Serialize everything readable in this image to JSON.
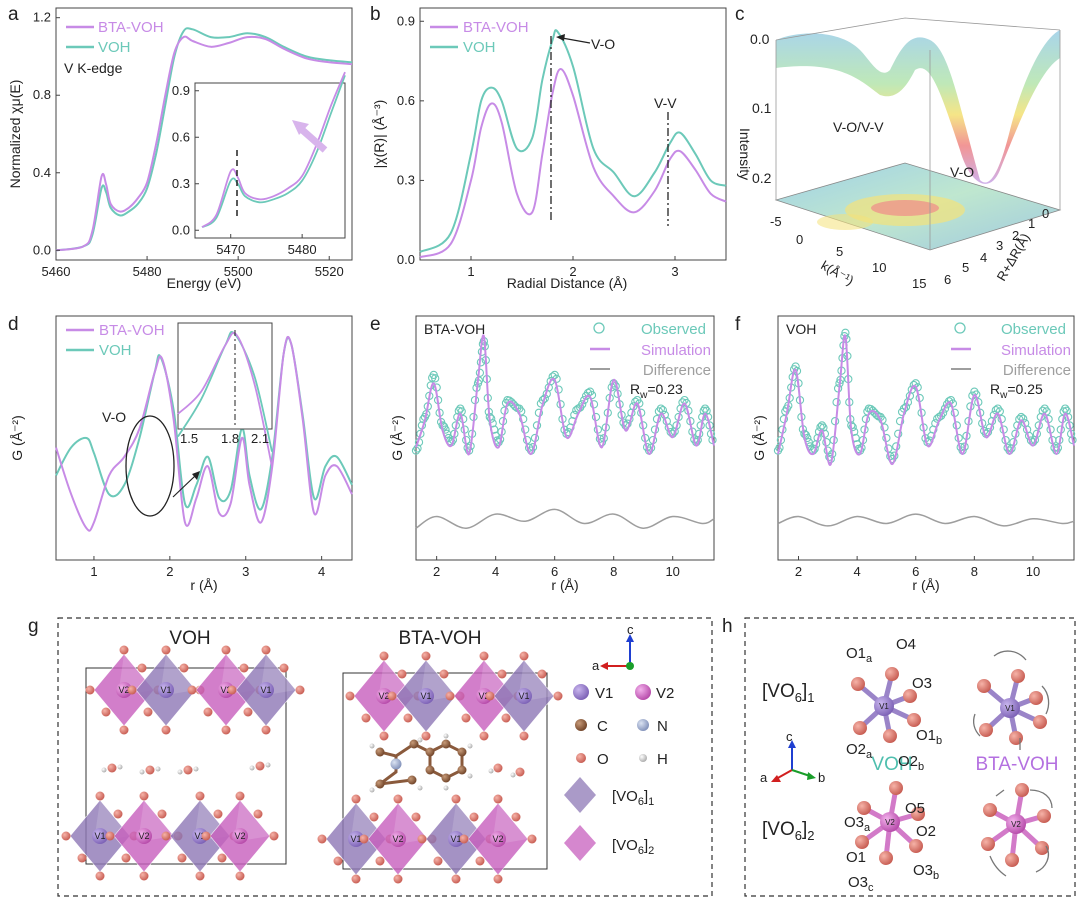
{
  "colors": {
    "bta": "#c78be6",
    "voh": "#6cc9b9",
    "diff": "#9e9e9e",
    "vo6_1": "#8e78b6",
    "vo6_2": "#c75fbd",
    "oxygen": "#d9756a",
    "carbon": "#8a5a3c",
    "nitrogen": "#9eaecf"
  },
  "panel_letters": {
    "a": "a",
    "b": "b",
    "c": "c",
    "d": "d",
    "e": "e",
    "f": "f",
    "g": "g",
    "h": "h"
  },
  "panel_a": {
    "legend": [
      "BTA-VOH",
      "VOH"
    ],
    "note": "V K-edge",
    "xlabel": "Energy (eV)",
    "ylabel": "Normalized χμ(E)",
    "xticks": [
      "5460",
      "5480",
      "5500",
      "5520"
    ],
    "yticks": [
      "0.0",
      "0.4",
      "0.8",
      "1.2"
    ],
    "inset_xticks": [
      "5470",
      "5480"
    ],
    "inset_yticks": [
      "0.0",
      "0.3",
      "0.6",
      "0.9"
    ]
  },
  "panel_b": {
    "legend": [
      "BTA-VOH",
      "VOH"
    ],
    "xlabel": "Radial Distance (Å)",
    "ylabel": "|χ(R)| (Å⁻³)",
    "xticks": [
      "1",
      "2",
      "3"
    ],
    "yticks": [
      "0.0",
      "0.3",
      "0.6",
      "0.9"
    ],
    "ann_vo": "V-O",
    "ann_vv": "V-V"
  },
  "panel_c": {
    "zlabel": "Intensity",
    "zticks": [
      "0.0",
      "0.1",
      "0.2"
    ],
    "k_label": "k(Å⁻¹)",
    "r_label": "R+ΔR(Å)",
    "k_ticks": [
      "-5",
      "0",
      "5",
      "10",
      "15"
    ],
    "r_ticks": [
      "0",
      "1",
      "2",
      "3",
      "4",
      "5",
      "6"
    ],
    "ann1": "V-O/V-V",
    "ann2": "V-O"
  },
  "panel_d": {
    "legend": [
      "BTA-VOH",
      "VOH"
    ],
    "xlabel": "r (Å)",
    "ylabel": "G (Å⁻²)",
    "xticks": [
      "1",
      "2",
      "3",
      "4"
    ],
    "ann": "V-O",
    "inset_xticks": [
      "1.5",
      "1.8",
      "2.1"
    ]
  },
  "panel_e": {
    "title": "BTA-VOH",
    "legend": [
      "Observed",
      "Simulation",
      "Difference"
    ],
    "rw": "R",
    "rw_sub": "w",
    "rw_val": "=0.23",
    "xlabel": "r (Å)",
    "ylabel": "G (Å⁻²)",
    "xticks": [
      "2",
      "4",
      "6",
      "8",
      "10"
    ]
  },
  "panel_f": {
    "title": "VOH",
    "legend": [
      "Observed",
      "Simulation",
      "Difference"
    ],
    "rw": "R",
    "rw_sub": "w",
    "rw_val": "=0.25",
    "xlabel": "r (Å)",
    "ylabel": "G (Å⁻²)",
    "xticks": [
      "2",
      "4",
      "6",
      "8",
      "10"
    ]
  },
  "panel_g": {
    "title_left": "VOH",
    "title_right": "BTA-VOH",
    "axis_c": "c",
    "axis_a": "a",
    "legend_v1": "V1",
    "legend_v2": "V2",
    "legend_c": "C",
    "legend_n": "N",
    "legend_o": "O",
    "legend_h": "H",
    "vo6_1": "[VO",
    "vo6_1_sub": "6",
    "vo6_1_end": "]",
    "vo6_1_idx": "1",
    "vo6_2_idx": "2",
    "site_v1": "V1",
    "site_v2": "V2"
  },
  "panel_h": {
    "row1": "[VO",
    "sub6": "6",
    "idx1": "1",
    "idx2": "2",
    "voh": "VOH",
    "bta_voh": "BTA-VOH",
    "axes": [
      "c",
      "a",
      "b"
    ],
    "labels1": [
      "O1",
      "a",
      "O4",
      "O3",
      "O2",
      "a",
      "O2",
      "b",
      "O1",
      "b"
    ],
    "labels2": [
      "O3",
      "a",
      "O5",
      "O2",
      "O1",
      "O3",
      "c",
      "O3",
      "b"
    ],
    "site_v1": "V1",
    "site_v2": "V2"
  },
  "chart_data": [
    {
      "panel": "a",
      "type": "line",
      "xlabel": "Energy (eV)",
      "ylabel": "Normalized χμ(E)",
      "xlim": [
        5460,
        5525
      ],
      "ylim": [
        -0.05,
        1.25
      ],
      "series": [
        {
          "name": "BTA-VOH",
          "x": [
            5460,
            5466,
            5468,
            5470,
            5471,
            5472,
            5474,
            5476,
            5478,
            5480,
            5482,
            5484,
            5486,
            5488,
            5490,
            5494,
            5498,
            5502,
            5506,
            5510,
            5515,
            5520,
            5525
          ],
          "y": [
            0.0,
            0.02,
            0.1,
            0.38,
            0.34,
            0.24,
            0.2,
            0.22,
            0.27,
            0.35,
            0.55,
            0.8,
            1.02,
            1.1,
            1.08,
            1.05,
            1.07,
            1.1,
            1.09,
            1.04,
            0.99,
            0.97,
            0.96
          ]
        },
        {
          "name": "VOH",
          "x": [
            5460,
            5466,
            5468,
            5470,
            5471,
            5472,
            5474,
            5476,
            5478,
            5480,
            5482,
            5484,
            5486,
            5488,
            5490,
            5494,
            5498,
            5502,
            5506,
            5510,
            5515,
            5520,
            5525
          ],
          "y": [
            0.0,
            0.02,
            0.08,
            0.32,
            0.3,
            0.22,
            0.18,
            0.2,
            0.24,
            0.32,
            0.5,
            0.75,
            1.0,
            1.13,
            1.14,
            1.1,
            1.1,
            1.12,
            1.1,
            1.05,
            1.0,
            0.98,
            0.97
          ]
        }
      ]
    },
    {
      "panel": "b",
      "type": "line",
      "xlabel": "Radial Distance (Å)",
      "ylabel": "|χ(R)| (Å⁻³)",
      "xlim": [
        0.5,
        3.5
      ],
      "ylim": [
        0,
        0.95
      ],
      "series": [
        {
          "name": "BTA-VOH",
          "x": [
            0.5,
            0.8,
            1.0,
            1.1,
            1.2,
            1.3,
            1.45,
            1.6,
            1.7,
            1.8,
            1.88,
            2.0,
            2.2,
            2.4,
            2.6,
            2.8,
            2.95,
            3.05,
            3.2,
            3.35,
            3.5
          ],
          "y": [
            0.01,
            0.06,
            0.3,
            0.5,
            0.59,
            0.52,
            0.25,
            0.18,
            0.4,
            0.63,
            0.72,
            0.62,
            0.35,
            0.24,
            0.18,
            0.26,
            0.38,
            0.41,
            0.34,
            0.25,
            0.22
          ]
        },
        {
          "name": "VOH",
          "x": [
            0.5,
            0.8,
            1.0,
            1.1,
            1.2,
            1.3,
            1.45,
            1.6,
            1.7,
            1.8,
            1.85,
            2.0,
            2.2,
            2.4,
            2.6,
            2.8,
            2.95,
            3.05,
            3.2,
            3.35,
            3.5
          ],
          "y": [
            0.03,
            0.1,
            0.4,
            0.6,
            0.65,
            0.6,
            0.42,
            0.46,
            0.68,
            0.83,
            0.86,
            0.73,
            0.42,
            0.33,
            0.24,
            0.33,
            0.44,
            0.48,
            0.4,
            0.3,
            0.28
          ]
        }
      ]
    },
    {
      "panel": "d",
      "type": "line",
      "xlabel": "r (Å)",
      "ylabel": "G (Å⁻²)",
      "xlim": [
        0.5,
        4.4
      ],
      "series": [
        {
          "name": "BTA-VOH",
          "x": [
            0.5,
            0.7,
            0.9,
            1.0,
            1.2,
            1.4,
            1.6,
            1.8,
            1.9,
            2.05,
            2.2,
            2.35,
            2.5,
            2.65,
            2.8,
            2.95,
            3.05,
            3.2,
            3.35,
            3.5,
            3.6,
            3.75,
            3.9,
            4.05,
            4.2,
            4.4
          ],
          "y": [
            0.45,
            0.2,
            0.02,
            0.05,
            0.3,
            0.4,
            0.55,
            0.85,
            0.92,
            0.6,
            0.05,
            0.18,
            0.35,
            0.1,
            0.15,
            0.5,
            0.25,
            0.05,
            0.35,
            0.95,
            1.0,
            0.6,
            0.1,
            0.3,
            0.35,
            0.2
          ]
        },
        {
          "name": "VOH",
          "x": [
            0.5,
            0.7,
            0.9,
            1.0,
            1.2,
            1.4,
            1.6,
            1.8,
            1.88,
            2.05,
            2.2,
            2.35,
            2.5,
            2.65,
            2.8,
            2.95,
            3.05,
            3.2,
            3.35,
            3.5,
            3.6,
            3.75,
            3.9,
            4.05,
            4.2,
            4.4
          ],
          "y": [
            0.3,
            0.45,
            0.5,
            0.42,
            0.2,
            0.25,
            0.5,
            0.85,
            0.93,
            0.65,
            0.15,
            0.25,
            0.4,
            0.18,
            0.22,
            0.55,
            0.3,
            0.12,
            0.4,
            0.95,
            1.0,
            0.62,
            0.18,
            0.35,
            0.4,
            0.25
          ]
        }
      ]
    },
    {
      "panel": "e",
      "type": "line",
      "xlabel": "r (Å)",
      "ylabel": "G (Å⁻²)",
      "xlim": [
        1.3,
        11.4
      ],
      "series": [
        {
          "name": "Observed",
          "x": [
            1.3,
            1.6,
            1.9,
            2.2,
            2.5,
            2.8,
            3.1,
            3.4,
            3.6,
            3.8,
            4.1,
            4.4,
            4.8,
            5.2,
            5.6,
            6.0,
            6.4,
            6.8,
            7.2,
            7.6,
            8.0,
            8.4,
            8.8,
            9.2,
            9.6,
            10.0,
            10.4,
            10.8,
            11.1,
            11.4
          ],
          "y": [
            0.3,
            0.5,
            0.75,
            0.45,
            0.35,
            0.55,
            0.3,
            0.7,
            0.95,
            0.5,
            0.35,
            0.6,
            0.55,
            0.3,
            0.6,
            0.75,
            0.4,
            0.55,
            0.65,
            0.35,
            0.7,
            0.45,
            0.6,
            0.3,
            0.55,
            0.4,
            0.6,
            0.35,
            0.55,
            0.35
          ]
        },
        {
          "name": "Simulation",
          "x": [
            1.3,
            1.6,
            1.9,
            2.2,
            2.5,
            2.8,
            3.1,
            3.4,
            3.6,
            3.8,
            4.1,
            4.4,
            4.8,
            5.2,
            5.6,
            6.0,
            6.4,
            6.8,
            7.2,
            7.6,
            8.0,
            8.4,
            8.8,
            9.2,
            9.6,
            10.0,
            10.4,
            10.8,
            11.1,
            11.4
          ],
          "y": [
            0.32,
            0.48,
            0.7,
            0.42,
            0.33,
            0.52,
            0.28,
            0.72,
            0.98,
            0.48,
            0.32,
            0.58,
            0.52,
            0.28,
            0.58,
            0.72,
            0.38,
            0.52,
            0.62,
            0.32,
            0.72,
            0.42,
            0.58,
            0.28,
            0.52,
            0.38,
            0.58,
            0.33,
            0.52,
            0.33
          ]
        },
        {
          "name": "Difference",
          "x": [
            1.3,
            2,
            3,
            4,
            5,
            6,
            7,
            8,
            9,
            10,
            11,
            11.4
          ],
          "y": [
            0.0,
            0.05,
            0.0,
            0.06,
            0.03,
            0.08,
            0.02,
            0.06,
            0.0,
            0.05,
            0.02,
            0.04
          ]
        }
      ]
    },
    {
      "panel": "f",
      "type": "line",
      "xlabel": "r (Å)",
      "ylabel": "G (Å⁻²)",
      "xlim": [
        1.3,
        11.4
      ],
      "series": [
        {
          "name": "Observed",
          "x": [
            1.3,
            1.6,
            1.9,
            2.2,
            2.5,
            2.8,
            3.1,
            3.4,
            3.6,
            3.8,
            4.1,
            4.4,
            4.8,
            5.2,
            5.6,
            6.0,
            6.4,
            6.8,
            7.2,
            7.6,
            8.0,
            8.4,
            8.8,
            9.2,
            9.6,
            10.0,
            10.4,
            10.8,
            11.1,
            11.4
          ],
          "y": [
            0.3,
            0.55,
            0.8,
            0.4,
            0.3,
            0.45,
            0.25,
            0.7,
            1.0,
            0.45,
            0.3,
            0.55,
            0.5,
            0.25,
            0.55,
            0.7,
            0.35,
            0.5,
            0.6,
            0.3,
            0.65,
            0.4,
            0.55,
            0.3,
            0.5,
            0.35,
            0.55,
            0.3,
            0.55,
            0.35
          ]
        },
        {
          "name": "Simulation",
          "x": [
            1.3,
            1.6,
            1.9,
            2.2,
            2.5,
            2.8,
            3.1,
            3.4,
            3.6,
            3.8,
            4.1,
            4.4,
            4.8,
            5.2,
            5.6,
            6.0,
            6.4,
            6.8,
            7.2,
            7.6,
            8.0,
            8.4,
            8.8,
            9.2,
            9.6,
            10.0,
            10.4,
            10.8,
            11.1,
            11.4
          ],
          "y": [
            0.28,
            0.52,
            0.78,
            0.38,
            0.28,
            0.42,
            0.22,
            0.68,
            0.98,
            0.42,
            0.28,
            0.52,
            0.48,
            0.22,
            0.52,
            0.68,
            0.33,
            0.48,
            0.58,
            0.28,
            0.63,
            0.38,
            0.52,
            0.28,
            0.48,
            0.33,
            0.52,
            0.28,
            0.52,
            0.33
          ]
        },
        {
          "name": "Difference",
          "x": [
            1.3,
            2,
            3,
            4,
            5,
            6,
            7,
            8,
            9,
            10,
            11,
            11.4
          ],
          "y": [
            0.02,
            0.05,
            0.01,
            0.05,
            0.02,
            0.06,
            0.02,
            0.05,
            0.01,
            0.04,
            0.02,
            0.03
          ]
        }
      ]
    }
  ]
}
